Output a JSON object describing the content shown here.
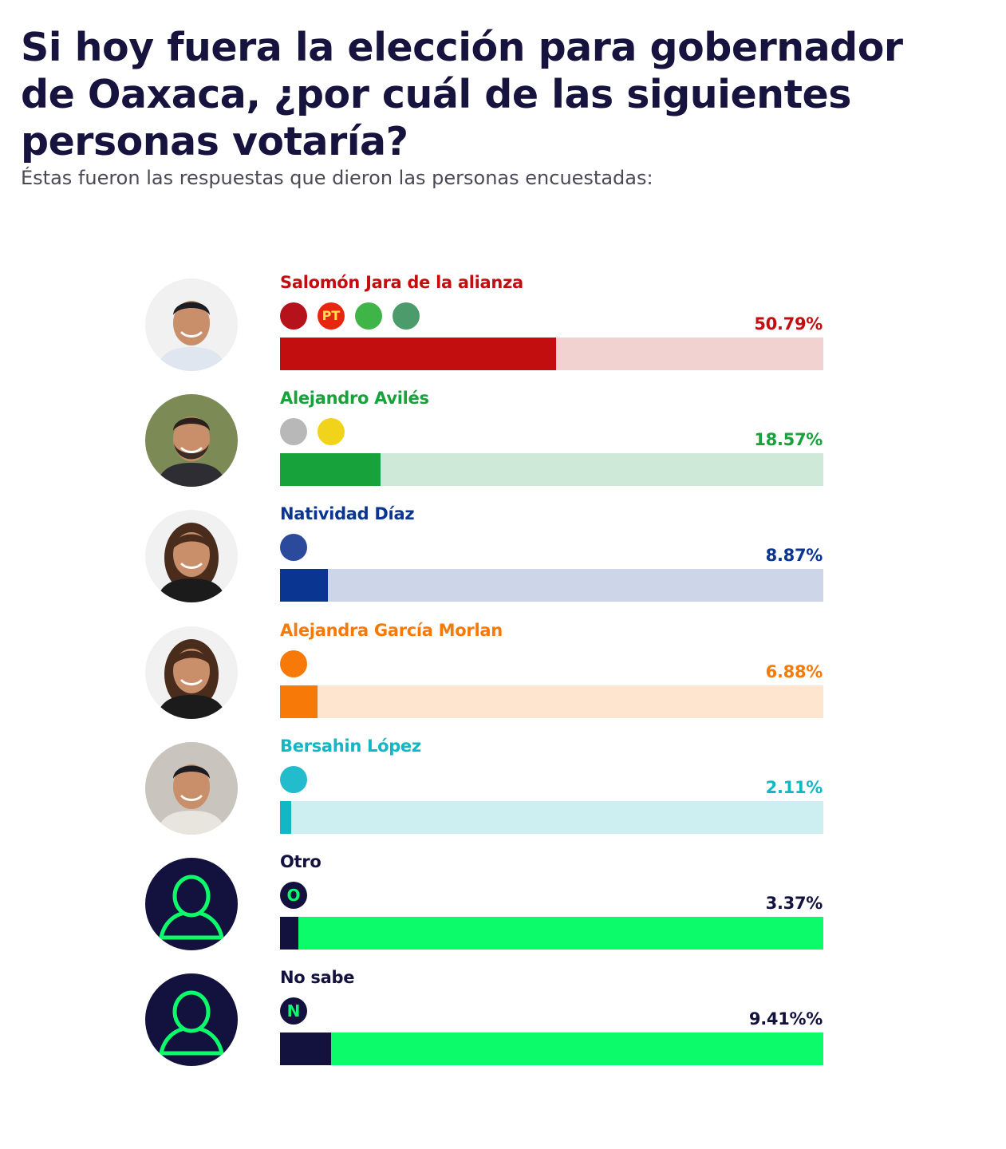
{
  "header": {
    "title": "Si hoy fuera la elección para gobernador de Oaxaca, ¿por cuál de las siguientes personas votaría?",
    "subtitle": "Éstas fueron las respuestas que dieron las personas encuestadas:"
  },
  "chart_data": {
    "type": "bar",
    "orientation": "horizontal",
    "title": "Si hoy fuera la elección para gobernador de Oaxaca, ¿por cuál de las siguientes personas votaría?",
    "subtitle": "Éstas fueron las respuestas que dieron las personas encuestadas:",
    "categories": [
      "Salomón Jara de la alianza",
      "Alejandro Avilés",
      "Natividad Díaz",
      "Alejandra García Morlan",
      "Bersahin López",
      "Otro",
      "No sabe"
    ],
    "values": [
      50.79,
      18.57,
      8.87,
      6.88,
      2.11,
      3.37,
      9.41
    ],
    "xlim": [
      0,
      100
    ],
    "grid": false,
    "legend": "none",
    "value_unit": "%",
    "items": [
      {
        "name": "Salomón Jara de la alianza",
        "value": 50.79,
        "value_label": "50.79%",
        "color": "#c20e0e",
        "track_color": "#f2d1d1",
        "avatar": "photo-man-icon",
        "logos": [
          {
            "icon": "morena-logo-icon",
            "color": "#b5121b",
            "text": ""
          },
          {
            "icon": "pt-logo-icon",
            "color": "#e8250f",
            "text": "PT"
          },
          {
            "icon": "pvem-logo-icon",
            "color": "#3fb548",
            "text": ""
          },
          {
            "icon": "nueva-alianza-logo-icon",
            "color": "#4c9b6a",
            "text": ""
          }
        ]
      },
      {
        "name": "Alejandro Avilés",
        "value": 18.57,
        "value_label": "18.57%",
        "color": "#17a23b",
        "track_color": "#cfe9d8",
        "avatar": "photo-man-beard-icon",
        "logos": [
          {
            "icon": "pri-logo-icon",
            "color": "#b8b8b8",
            "text": ""
          },
          {
            "icon": "prd-logo-icon",
            "color": "#f2d31b",
            "text": ""
          }
        ]
      },
      {
        "name": "Natividad Díaz",
        "value": 8.87,
        "value_label": "8.87%",
        "color": "#0a3590",
        "track_color": "#cdd5e8",
        "avatar": "photo-woman-icon",
        "logos": [
          {
            "icon": "pan-logo-icon",
            "color": "#2c4a9c",
            "text": ""
          }
        ]
      },
      {
        "name": "Alejandra García Morlan",
        "value": 6.88,
        "value_label": "6.88%",
        "color": "#f77a08",
        "track_color": "#fde5cf",
        "avatar": "photo-woman-dark-hair-icon",
        "logos": [
          {
            "icon": "movimiento-ciudadano-logo-icon",
            "color": "#f77a08",
            "text": ""
          }
        ]
      },
      {
        "name": "Bersahin López",
        "value": 2.11,
        "value_label": "2.11%",
        "color": "#12b7c3",
        "track_color": "#cdeff1",
        "avatar": "photo-man-glasses-icon",
        "logos": [
          {
            "icon": "nueva-alianza-oaxaca-logo-icon",
            "color": "#22bccc",
            "text": ""
          }
        ]
      },
      {
        "name": "Otro",
        "value": 3.37,
        "value_label": "3.37%",
        "color": "#13113d",
        "track_color": "#0cfb6a",
        "avatar": "user-silhouette-icon",
        "logos": [
          {
            "icon": "letter-o-icon",
            "color": "#13113d",
            "text": "O"
          }
        ]
      },
      {
        "name": "No sabe",
        "value": 9.41,
        "value_label": "9.41%%",
        "color": "#13113d",
        "track_color": "#0cfb6a",
        "avatar": "user-silhouette-icon",
        "logos": [
          {
            "icon": "letter-n-icon",
            "color": "#13113d",
            "text": "N"
          }
        ]
      }
    ]
  }
}
